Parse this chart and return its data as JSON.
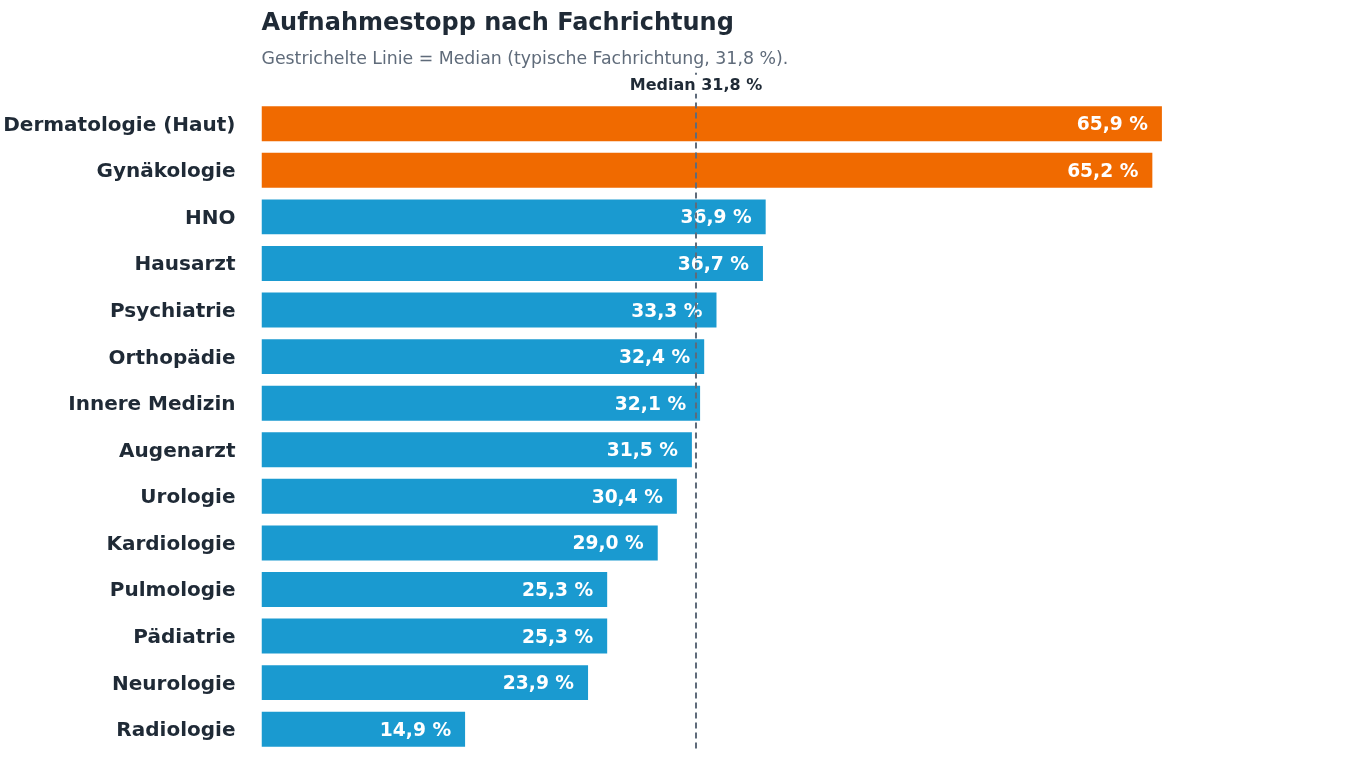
{
  "chart_data": {
    "type": "bar",
    "orientation": "horizontal",
    "title": "Aufnahmestopp nach Fachrichtung",
    "subtitle": "Gestrichelte Linie = Median (typische Fachrichtung, 31,8 %).",
    "categories": [
      "Dermatologie (Haut)",
      "Gynäkologie",
      "HNO",
      "Hausarzt",
      "Psychiatrie",
      "Orthopädie",
      "Innere Medizin",
      "Augenarzt",
      "Urologie",
      "Kardiologie",
      "Pulmologie",
      "Pädiatrie",
      "Neurologie",
      "Radiologie"
    ],
    "values": [
      65.9,
      65.2,
      36.9,
      36.7,
      33.3,
      32.4,
      32.1,
      31.5,
      30.4,
      29.0,
      25.3,
      25.3,
      23.9,
      14.9
    ],
    "colors": [
      "#f06a00",
      "#f06a00",
      "#1a9ad0",
      "#1a9ad0",
      "#1a9ad0",
      "#1a9ad0",
      "#1a9ad0",
      "#1a9ad0",
      "#1a9ad0",
      "#1a9ad0",
      "#1a9ad0",
      "#1a9ad0",
      "#1a9ad0",
      "#1a9ad0"
    ],
    "value_labels": [
      "65,9 %",
      "65,2 %",
      "36,9 %",
      "36,7 %",
      "33,3 %",
      "32,4 %",
      "32,1 %",
      "31,5 %",
      "30,4 %",
      "29,0 %",
      "25,3 %",
      "25,3 %",
      "23,9 %",
      "14,9 %"
    ],
    "tick_labels": "y",
    "grid": false,
    "ref_lines": [
      {
        "axis": "x",
        "value": 31.8,
        "label": "Median 31,8 %",
        "color": "#5f6b7a",
        "line_style": "dashed"
      }
    ]
  }
}
